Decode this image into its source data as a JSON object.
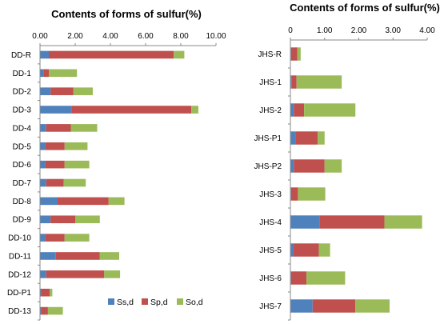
{
  "colors": {
    "Ss,d": "#4F81BD",
    "Sp,d": "#C0504D",
    "So,d": "#9BBB59"
  },
  "chart_data": [
    {
      "type": "bar",
      "orientation": "horizontal",
      "stacked": true,
      "title": "Contents of forms of sulfur(%)",
      "xlim": [
        0,
        10
      ],
      "xticks": [
        "0.00",
        "2.00",
        "4.00",
        "6.00",
        "8.00",
        "10.00"
      ],
      "xtick_values": [
        0,
        2,
        4,
        6,
        8,
        10
      ],
      "axis_position": "top",
      "grid": false,
      "legend_position": "bottom-right",
      "categories": [
        "DD-R",
        "DD-1",
        "DD-2",
        "DD-3",
        "DD-4",
        "DD-5",
        "DD-6",
        "DD-7",
        "DD-8",
        "DD-9",
        "DD-10",
        "DD-11",
        "DD-12",
        "DD-P1",
        "DD-13"
      ],
      "series": [
        {
          "name": "Ss,d",
          "values": [
            0.5,
            0.2,
            0.6,
            1.8,
            0.35,
            0.3,
            0.3,
            0.35,
            1.0,
            0.6,
            0.3,
            0.9,
            0.35,
            0.05,
            0.05
          ]
        },
        {
          "name": "Sp,d",
          "values": [
            7.1,
            0.3,
            1.3,
            6.8,
            1.4,
            1.1,
            1.1,
            1.0,
            2.9,
            1.4,
            1.1,
            2.5,
            3.3,
            0.5,
            0.4
          ]
        },
        {
          "name": "So,d",
          "values": [
            0.6,
            1.6,
            1.1,
            0.4,
            1.5,
            1.3,
            1.4,
            1.25,
            0.9,
            1.4,
            1.4,
            1.1,
            0.9,
            0.15,
            0.85
          ]
        }
      ]
    },
    {
      "type": "bar",
      "orientation": "horizontal",
      "stacked": true,
      "title": "Contents of forms of sulfur(%)",
      "xlim": [
        0,
        4
      ],
      "xticks": [
        "0",
        "1.00",
        "2.00",
        "3.00",
        "4.00"
      ],
      "xtick_values": [
        0,
        1,
        2,
        3,
        4
      ],
      "axis_position": "top",
      "grid": false,
      "categories": [
        "JHS-R",
        "JHS-1",
        "JHS-2",
        "JHS-P1",
        "JHS-P2",
        "JHS-3",
        "JHS-4",
        "JHS-5",
        "JHS-6",
        "JHS-7"
      ],
      "series": [
        {
          "name": "Ss,d",
          "values": [
            0.02,
            0.03,
            0.1,
            0.15,
            0.1,
            0.02,
            0.85,
            0.08,
            0.02,
            0.65
          ]
        },
        {
          "name": "Sp,d",
          "values": [
            0.18,
            0.15,
            0.3,
            0.65,
            0.9,
            0.2,
            1.9,
            0.75,
            0.45,
            1.25
          ]
        },
        {
          "name": "So,d",
          "values": [
            0.1,
            1.32,
            1.5,
            0.2,
            0.5,
            0.8,
            1.1,
            0.33,
            1.13,
            1.0
          ]
        }
      ]
    }
  ]
}
